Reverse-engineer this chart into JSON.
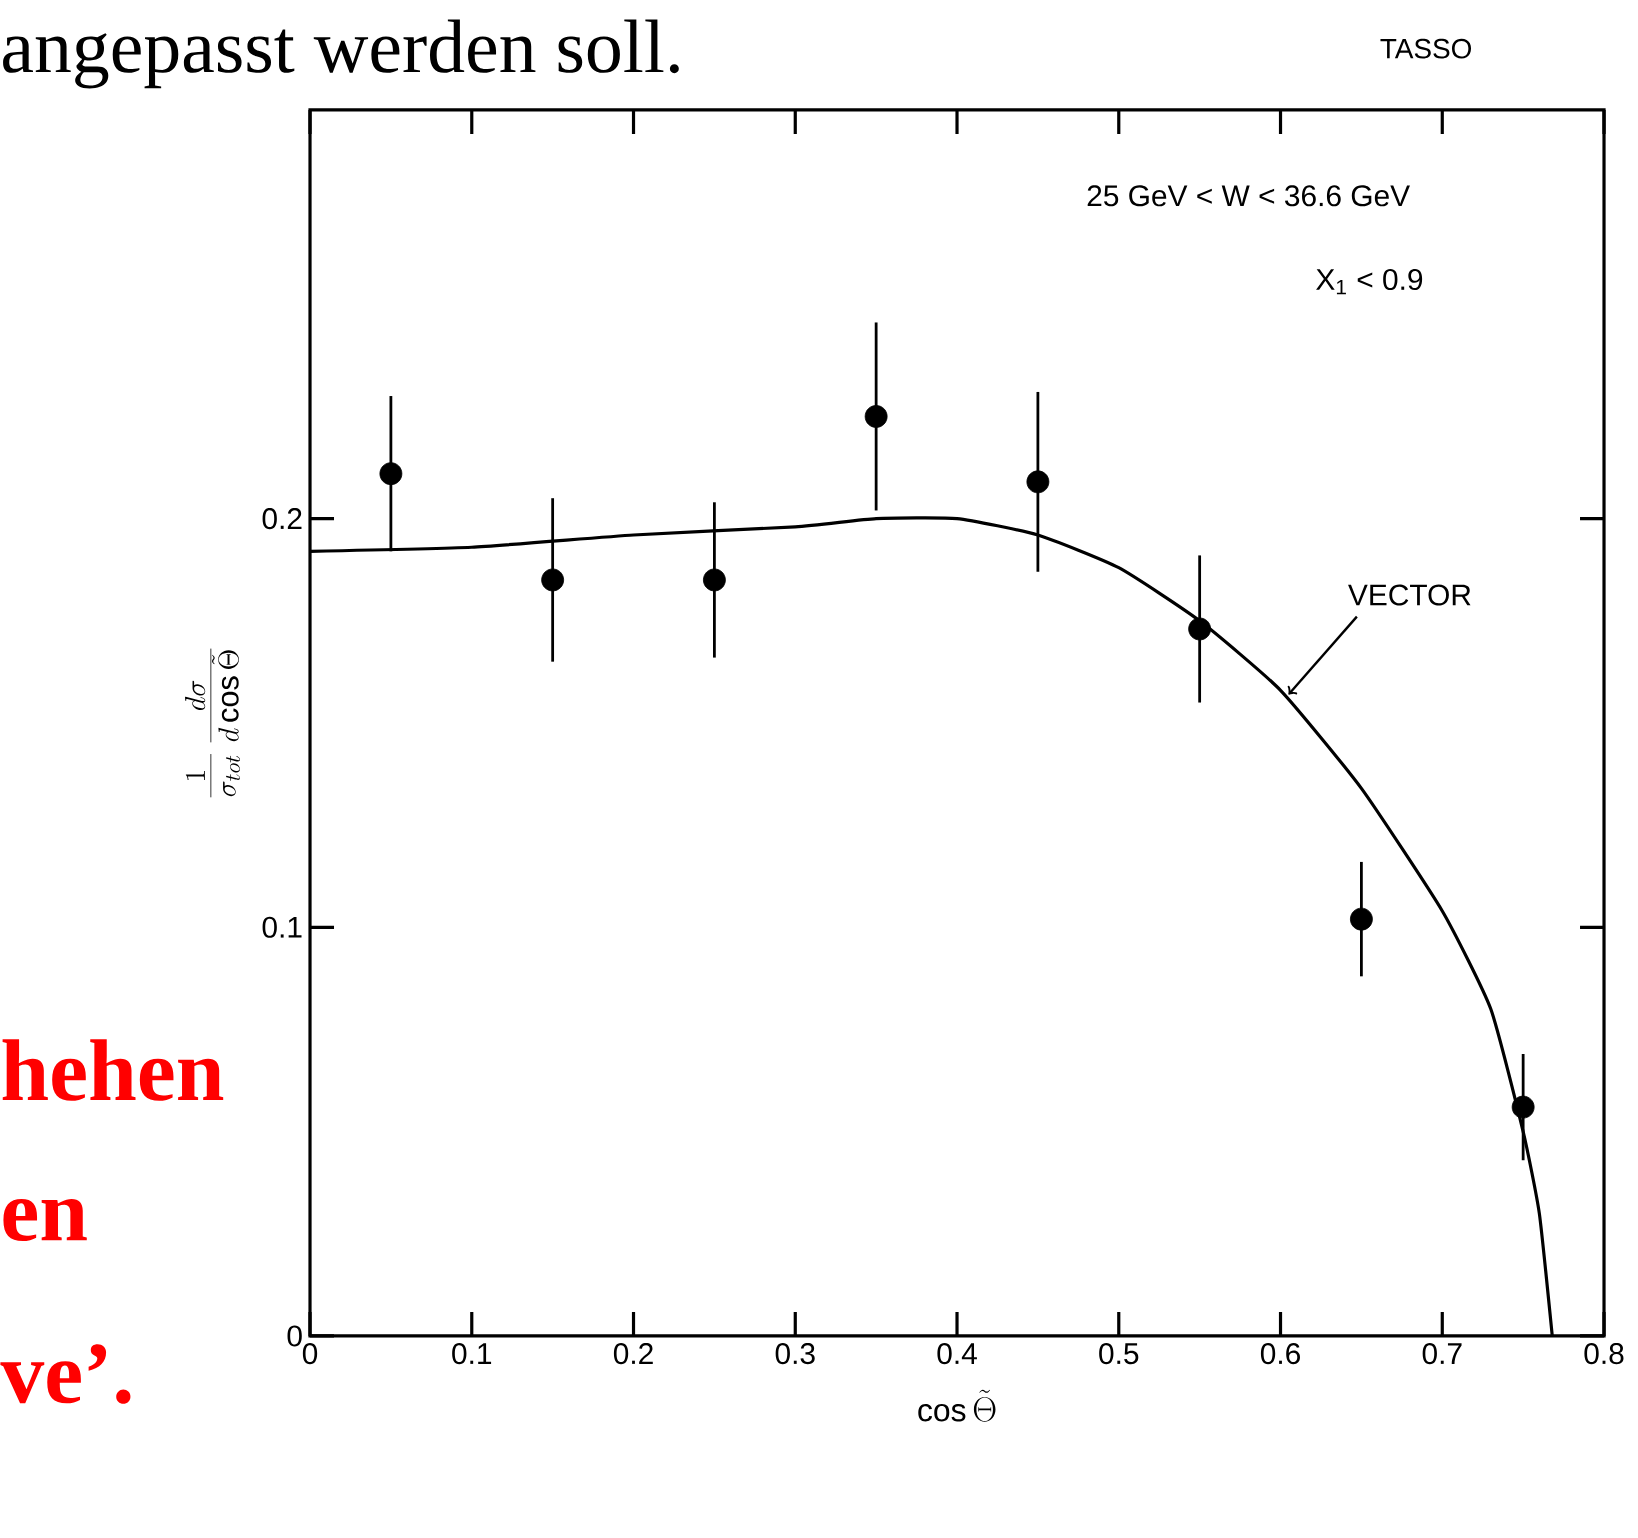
{
  "chart_data": {
    "type": "scatter",
    "xlim": [
      0,
      0.8
    ],
    "ylim": [
      0,
      0.3
    ],
    "xticks": [
      0,
      0.1,
      0.2,
      0.3,
      0.4,
      0.5,
      0.6,
      0.7,
      0.8
    ],
    "yticks": [
      0,
      0.1,
      0.2
    ],
    "xlabel": "\\cos\\tilde{\\Theta}",
    "ylabel": "\\frac{1}{\\sigma_{tot}}\\,\\frac{d\\sigma}{d\\cos\\tilde{\\Theta}}",
    "series": [
      {
        "marker": "circle",
        "color": "#000000",
        "x": [
          0.05,
          0.15,
          0.25,
          0.35,
          0.45,
          0.55,
          0.65,
          0.75
        ],
        "values": [
          0.211,
          0.185,
          0.185,
          0.225,
          0.209,
          0.173,
          0.102,
          0.056
        ],
        "errors": [
          0.019,
          0.02,
          0.019,
          0.023,
          0.022,
          0.018,
          0.014,
          0.013
        ]
      },
      {
        "type": "line",
        "marker": "none",
        "name": "VECTOR",
        "color": "#000000",
        "x": [
          0,
          0.1,
          0.2,
          0.3,
          0.35,
          0.4,
          0.45,
          0.5,
          0.55,
          0.6,
          0.65,
          0.7,
          0.73,
          0.75,
          0.76,
          0.768
        ],
        "values": [
          0.192,
          0.193,
          0.196,
          0.198,
          0.2,
          0.2,
          0.196,
          0.188,
          0.175,
          0.158,
          0.134,
          0.104,
          0.08,
          0.05,
          0.03,
          0
        ]
      }
    ],
    "annotations": [
      "25 GeV < W < 36.6 GeV",
      "X$_{1}$ < 0.9",
      "TASSO",
      "angepasst werden soll.",
      "hehen",
      "en",
      "ve’."
    ]
  }
}
